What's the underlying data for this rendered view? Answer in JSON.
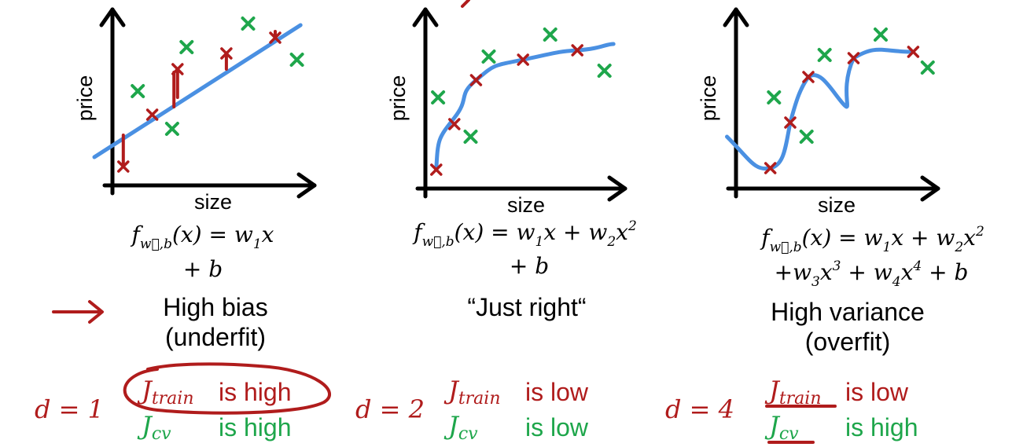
{
  "colors": {
    "axis": "#000000",
    "curve": "#4a90e2",
    "train_mark": "#b01c1c",
    "cv_mark": "#1ea64b",
    "annotation": "#b01c1c",
    "train_text": "#b01c1c",
    "cv_text": "#1ea64b"
  },
  "panels": [
    {
      "id": "underfit",
      "axes": {
        "ylabel": "price",
        "xlabel": "size"
      },
      "train_points": [
        [
          0.06,
          0.12
        ],
        [
          0.22,
          0.45
        ],
        [
          0.36,
          0.74
        ],
        [
          0.63,
          0.84
        ],
        [
          0.9,
          0.94
        ]
      ],
      "cv_points": [
        [
          0.14,
          0.6
        ],
        [
          0.33,
          0.36
        ],
        [
          0.41,
          0.88
        ],
        [
          0.75,
          1.03
        ],
        [
          1.02,
          0.8
        ]
      ],
      "model": {
        "line1": [
          "f",
          "w",
          "b",
          "(x) = w",
          "1",
          "x"
        ],
        "line2": "+ b"
      },
      "verdict": [
        "High bias",
        "(underfit)"
      ],
      "degree": "d = 1",
      "j_train": {
        "symbol": "J",
        "sub": "train",
        "status": "is high"
      },
      "j_cv": {
        "symbol": "J",
        "sub": "cv",
        "status": "is high"
      }
    },
    {
      "id": "just-right",
      "axes": {
        "ylabel": "price",
        "xlabel": "size"
      },
      "train_points": [
        [
          0.06,
          0.12
        ],
        [
          0.16,
          0.41
        ],
        [
          0.28,
          0.69
        ],
        [
          0.54,
          0.82
        ],
        [
          0.84,
          0.88
        ]
      ],
      "cv_points": [
        [
          0.07,
          0.58
        ],
        [
          0.25,
          0.33
        ],
        [
          0.35,
          0.84
        ],
        [
          0.69,
          0.98
        ],
        [
          0.99,
          0.75
        ]
      ],
      "model": {
        "line1": "f(x) = w1x + w2x2",
        "line2": "+ b"
      },
      "verdict": [
        "“Just right“"
      ],
      "degree": "d = 2",
      "j_train": {
        "symbol": "J",
        "sub": "train",
        "status": "is low"
      },
      "j_cv": {
        "symbol": "J",
        "sub": "cv",
        "status": "is low"
      }
    },
    {
      "id": "overfit",
      "axes": {
        "ylabel": "price",
        "xlabel": "size"
      },
      "train_points": [
        [
          0.19,
          0.13
        ],
        [
          0.3,
          0.42
        ],
        [
          0.4,
          0.71
        ],
        [
          0.65,
          0.83
        ],
        [
          0.98,
          0.87
        ]
      ],
      "cv_points": [
        [
          0.21,
          0.58
        ],
        [
          0.39,
          0.33
        ],
        [
          0.49,
          0.85
        ],
        [
          0.8,
          0.98
        ],
        [
          1.06,
          0.77
        ]
      ],
      "model": {
        "line1": "f(x) = w1x + w2x2",
        "line2": "+w3x3 + w4x4 + b"
      },
      "verdict": [
        "High variance",
        "(overfit)"
      ],
      "degree": "d = 4",
      "j_train": {
        "symbol": "J",
        "sub": "train",
        "status": "is low"
      },
      "j_cv": {
        "symbol": "J",
        "sub": "cv",
        "status": "is high"
      }
    }
  ]
}
